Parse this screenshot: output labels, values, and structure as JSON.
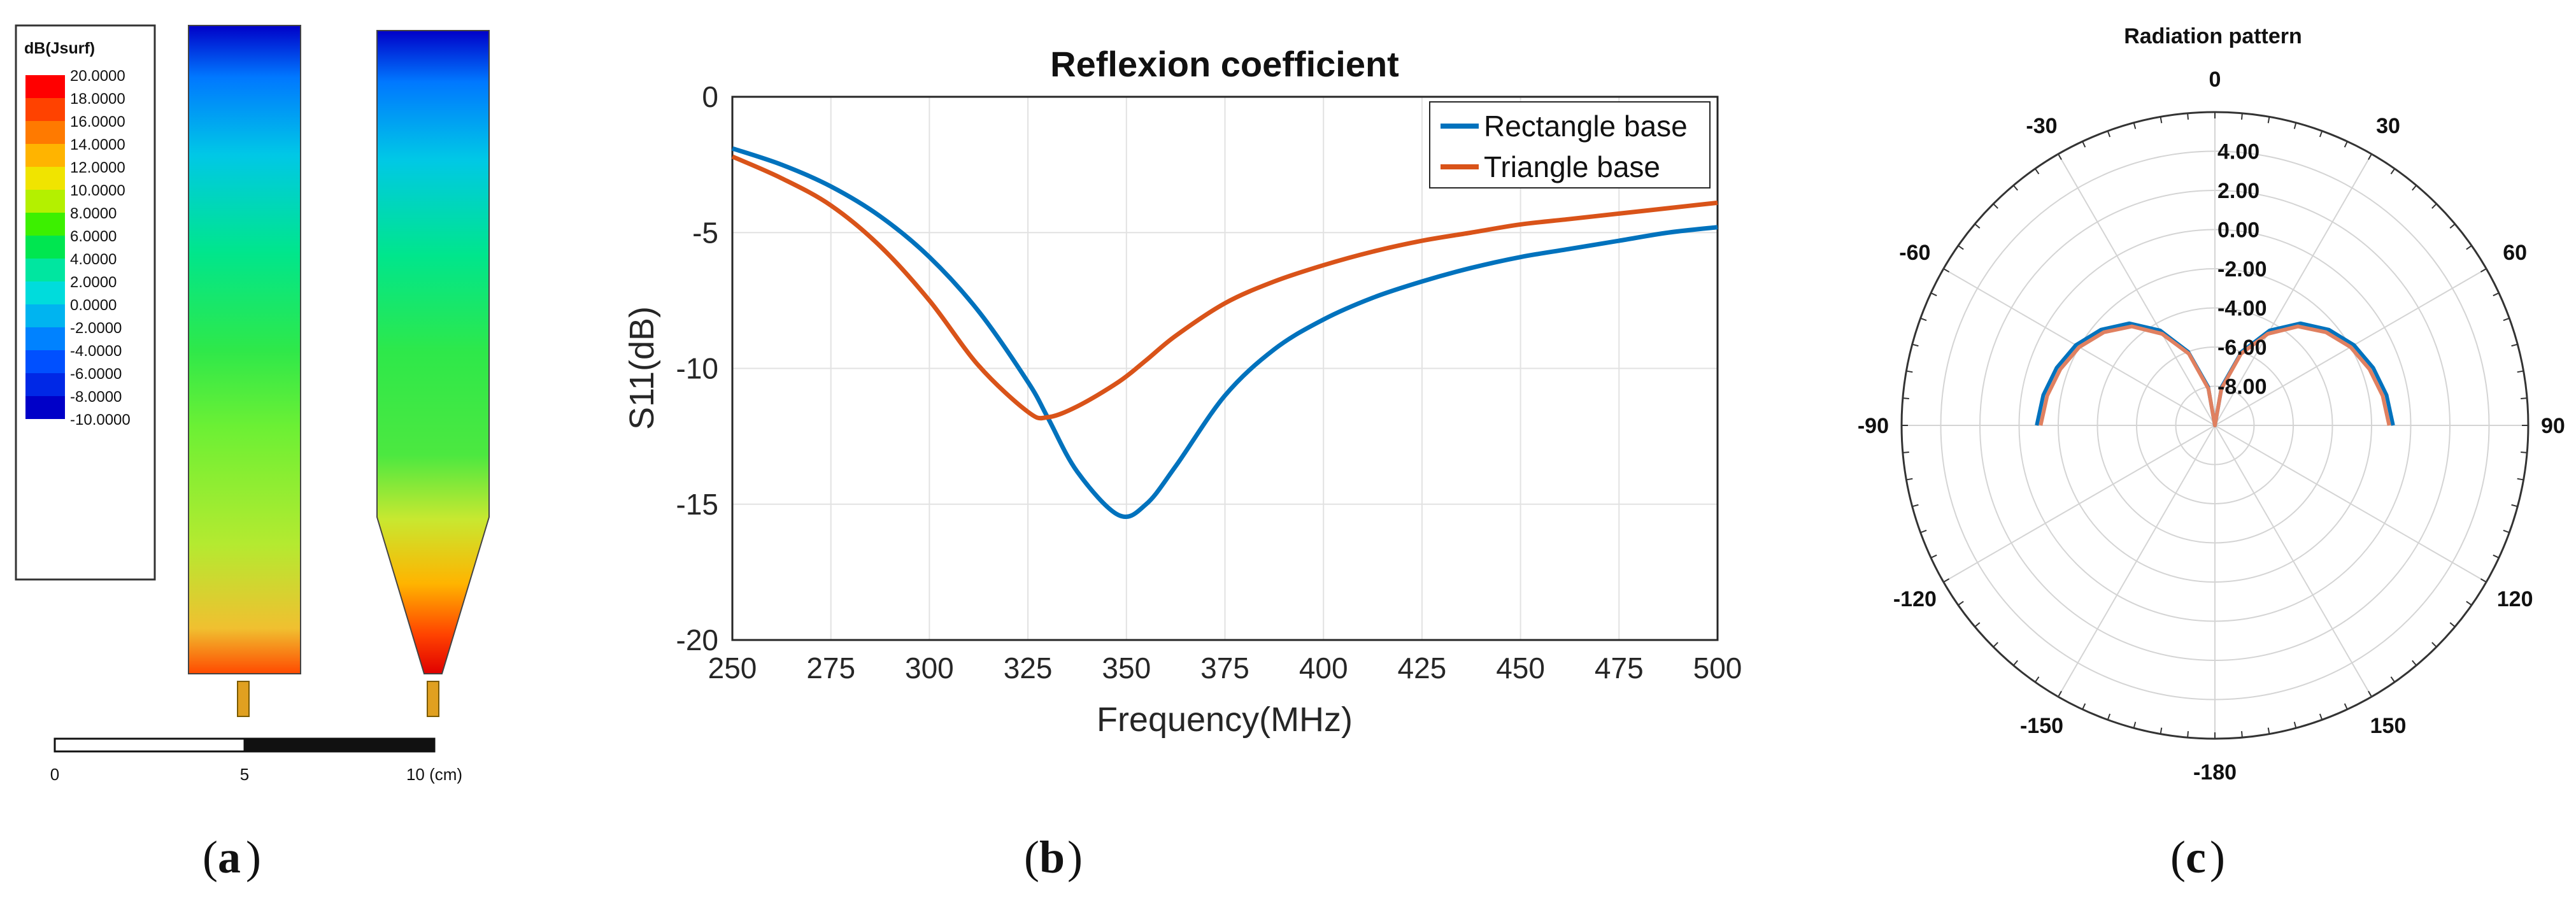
{
  "colors": {
    "rectangle": "#0072BD",
    "triangle": "#D95319",
    "triangle_polar": "#E08060"
  },
  "panel_a": {
    "caption": "a",
    "colorbar": {
      "title": "dB(Jsurf)",
      "labels": [
        "20.0000",
        "18.0000",
        "16.0000",
        "14.0000",
        "12.0000",
        "10.0000",
        "8.0000",
        "6.0000",
        "4.0000",
        "2.0000",
        "0.0000",
        "-2.0000",
        "-4.0000",
        "-6.0000",
        "-8.0000",
        "-10.0000"
      ],
      "colors": [
        "#ff0000",
        "#ff4200",
        "#ff7a00",
        "#ffb400",
        "#f0e400",
        "#b4f000",
        "#3cf000",
        "#00e650",
        "#00e6a0",
        "#00dcdc",
        "#00b4f0",
        "#0082ff",
        "#0050ff",
        "#0028e6",
        "#0000c8"
      ]
    },
    "scale_bar": {
      "labels": [
        "0",
        "5",
        "10 (cm)"
      ]
    },
    "antennas": [
      "rectangle base",
      "triangle base"
    ]
  },
  "chart_data": [
    {
      "panel": "b",
      "caption": "b",
      "type": "line",
      "title": "Reflexion coefficient",
      "xlabel": "Frequency(MHz)",
      "ylabel": "S11(dB)",
      "xlim": [
        250,
        500
      ],
      "ylim": [
        -20,
        0
      ],
      "xticks": [
        250,
        275,
        300,
        325,
        350,
        375,
        400,
        425,
        450,
        475,
        500
      ],
      "yticks": [
        0,
        -5,
        -10,
        -15,
        -20
      ],
      "grid": true,
      "legend_position": "top-right",
      "x": [
        250,
        262.5,
        275,
        287.5,
        300,
        312.5,
        325,
        330,
        337.5,
        348,
        355,
        362.5,
        375,
        387.5,
        400,
        412.5,
        425,
        437.5,
        450,
        462.5,
        475,
        487.5,
        500
      ],
      "series": [
        {
          "name": "Rectangle base",
          "values": [
            -1.9,
            -2.5,
            -3.3,
            -4.4,
            -5.9,
            -7.9,
            -10.5,
            -11.8,
            -13.8,
            -15.4,
            -15.0,
            -13.6,
            -11.0,
            -9.3,
            -8.2,
            -7.4,
            -6.8,
            -6.3,
            -5.9,
            -5.6,
            -5.3,
            -5.0,
            -4.8
          ]
        },
        {
          "name": "Triangle base",
          "values": [
            -2.2,
            -3.0,
            -4.0,
            -5.5,
            -7.5,
            -9.9,
            -11.6,
            -11.8,
            -11.4,
            -10.5,
            -9.7,
            -8.8,
            -7.6,
            -6.8,
            -6.2,
            -5.7,
            -5.3,
            -5.0,
            -4.7,
            -4.5,
            -4.3,
            -4.1,
            -3.9
          ]
        }
      ]
    },
    {
      "panel": "c",
      "caption": "c",
      "type": "polar",
      "title": "Radiation pattern",
      "angle_labels": [
        "0",
        "30",
        "60",
        "90",
        "120",
        "150",
        "-180",
        "-150",
        "-120",
        "-90",
        "-60",
        "-30"
      ],
      "angle_values": [
        0,
        30,
        60,
        90,
        120,
        150,
        180,
        -150,
        -120,
        -90,
        -60,
        -30
      ],
      "radial_labels": [
        "4.00",
        "2.00",
        "0.00",
        "-2.00",
        "-4.00",
        "-6.00",
        "-8.00"
      ],
      "r_range": [
        -10,
        6
      ],
      "theta": [
        -90,
        -80,
        -70,
        -60,
        -50,
        -40,
        -30,
        -20,
        -10,
        0,
        10,
        20,
        30,
        40,
        50,
        60,
        70,
        80,
        90
      ],
      "series": [
        {
          "name": "Rectangle base",
          "values": [
            -0.9,
            -1.1,
            -1.4,
            -1.8,
            -2.4,
            -3.2,
            -4.4,
            -6.0,
            -8.0,
            -10.0,
            -8.0,
            -6.0,
            -4.4,
            -3.2,
            -2.4,
            -1.8,
            -1.4,
            -1.1,
            -0.9
          ]
        },
        {
          "name": "Triangle base",
          "values": [
            -1.1,
            -1.3,
            -1.6,
            -2.0,
            -2.6,
            -3.4,
            -4.6,
            -6.1,
            -8.1,
            -10.0,
            -8.1,
            -6.1,
            -4.6,
            -3.4,
            -2.6,
            -2.0,
            -1.6,
            -1.3,
            -1.1
          ]
        }
      ]
    }
  ]
}
